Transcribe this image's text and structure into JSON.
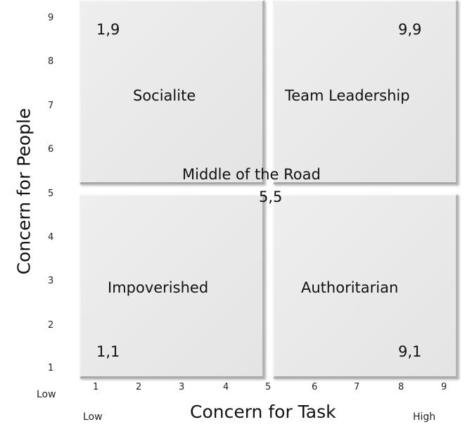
{
  "quadrants": {
    "top_left": {
      "label": "Socialite",
      "coord": "1,9"
    },
    "top_right": {
      "label": "Team Leadership",
      "coord": "9,9"
    },
    "bottom_left": {
      "label": "Impoverished",
      "coord": "1,1"
    },
    "bottom_right": {
      "label": "Authoritarian",
      "coord": "9,1"
    }
  },
  "center": {
    "label": "Middle of the Road",
    "coord": "5,5"
  },
  "y_axis": {
    "title": "Concern for People",
    "ticks": [
      "9",
      "8",
      "7",
      "6",
      "5",
      "4",
      "3",
      "2",
      "1"
    ],
    "low_label": "Low"
  },
  "x_axis": {
    "title": "Concern for Task",
    "ticks": [
      "1",
      "2",
      "3",
      "4",
      "5",
      "6",
      "7",
      "8",
      "9"
    ],
    "low_label": "Low",
    "high_label": "High"
  }
}
